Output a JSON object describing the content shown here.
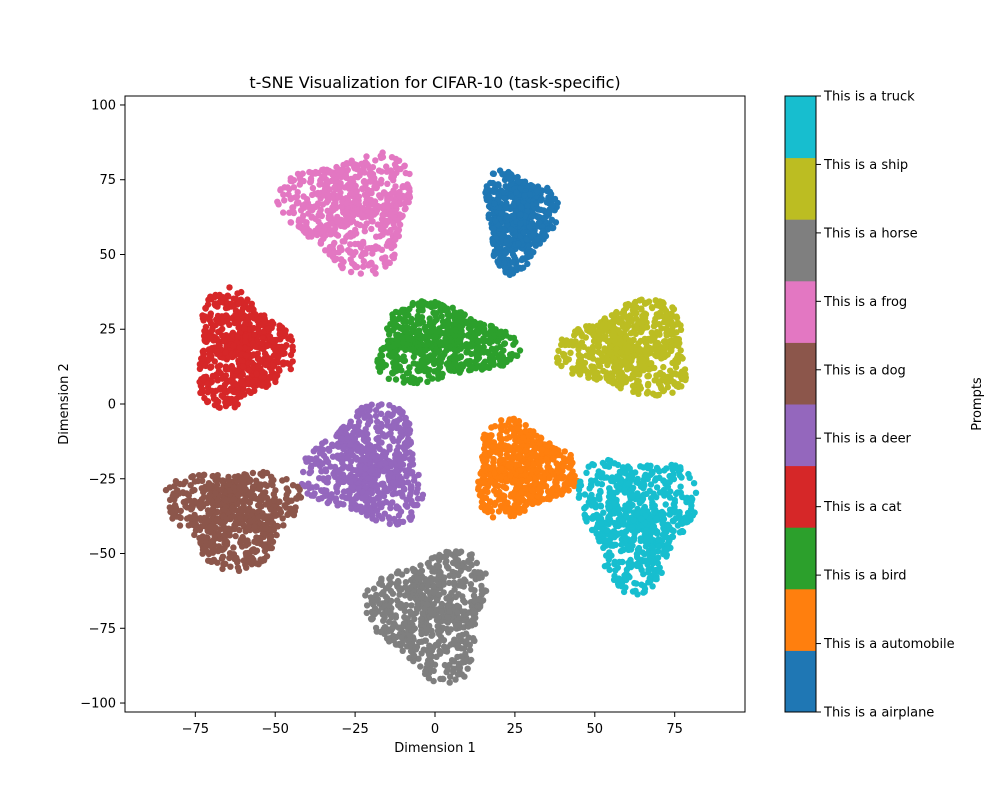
{
  "chart_data": {
    "type": "scatter",
    "title": "t-SNE Visualization for CIFAR-10 (task-specific)",
    "xlabel": "Dimension 1",
    "ylabel": "Dimension 2",
    "xlim": [
      -97,
      97
    ],
    "ylim": [
      -103,
      103
    ],
    "xticks": [
      -75,
      -50,
      -25,
      0,
      25,
      50,
      75
    ],
    "yticks": [
      -100,
      -75,
      -50,
      -25,
      0,
      25,
      50,
      75,
      100
    ],
    "grid": false,
    "colorbar": {
      "label": "Prompts",
      "tick_labels": [
        "This is a airplane",
        "This is a automobile",
        "This is a bird",
        "This is a cat",
        "This is a deer",
        "This is a dog",
        "This is a frog",
        "This is a horse",
        "This is a ship",
        "This is a truck"
      ]
    },
    "series": [
      {
        "name": "This is a airplane",
        "color": "#1f77b4",
        "center": [
          26,
          62
        ],
        "spread": [
          12,
          18
        ]
      },
      {
        "name": "This is a automobile",
        "color": "#ff7f0e",
        "center": [
          27,
          -22
        ],
        "spread": [
          17,
          17
        ]
      },
      {
        "name": "This is a bird",
        "color": "#2ca02c",
        "center": [
          2,
          20
        ],
        "spread": [
          24,
          14
        ]
      },
      {
        "name": "This is a cat",
        "color": "#d62728",
        "center": [
          -61,
          18
        ],
        "spread": [
          16,
          21
        ]
      },
      {
        "name": "This is a deer",
        "color": "#9467bd",
        "center": [
          -21,
          -21
        ],
        "spread": [
          20,
          21
        ]
      },
      {
        "name": "This is a dog",
        "color": "#8c564b",
        "center": [
          -63,
          -37
        ],
        "spread": [
          22,
          18
        ]
      },
      {
        "name": "This is a frog",
        "color": "#e377c2",
        "center": [
          -26,
          65
        ],
        "spread": [
          22,
          21
        ]
      },
      {
        "name": "This is a horse",
        "color": "#7f7f7f",
        "center": [
          -1,
          -70
        ],
        "spread": [
          20,
          23
        ]
      },
      {
        "name": "This is a ship",
        "color": "#bcbd22",
        "center": [
          61,
          18
        ],
        "spread": [
          22,
          17
        ]
      },
      {
        "name": "This is a truck",
        "color": "#17becf",
        "center": [
          63,
          -38
        ],
        "spread": [
          19,
          24
        ]
      }
    ]
  }
}
